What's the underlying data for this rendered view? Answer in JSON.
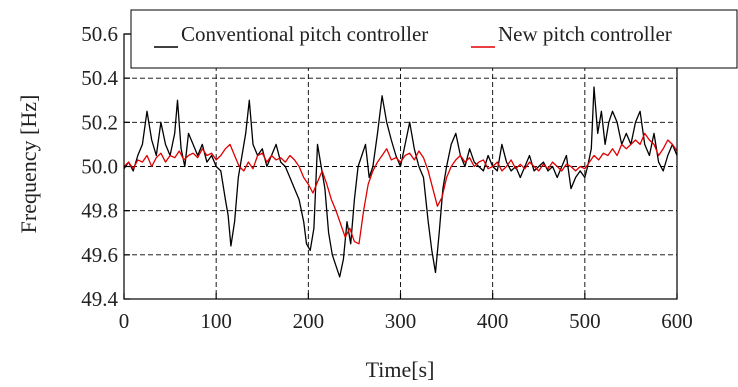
{
  "chart_data": {
    "type": "line",
    "xlabel": "Time[s]",
    "ylabel": "Frequency [Hz]",
    "xlim": [
      0,
      600
    ],
    "ylim": [
      49.4,
      50.6
    ],
    "xticks": [
      "0",
      "100",
      "200",
      "300",
      "400",
      "500",
      "600"
    ],
    "yticks": [
      "49.4",
      "49.6",
      "49.8",
      "50.0",
      "50.2",
      "50.4",
      "50.6"
    ],
    "grid": "dashed",
    "legend_position": "top",
    "series": [
      {
        "name": "Conventional pitch controller",
        "color": "#000000",
        "x": [
          0,
          5,
          10,
          15,
          20,
          25,
          30,
          35,
          40,
          45,
          50,
          55,
          58,
          62,
          66,
          70,
          75,
          80,
          85,
          90,
          95,
          100,
          105,
          110,
          113,
          116,
          120,
          124,
          128,
          132,
          136,
          140,
          145,
          150,
          155,
          160,
          165,
          170,
          175,
          180,
          185,
          190,
          195,
          198,
          202,
          206,
          210,
          214,
          218,
          222,
          226,
          230,
          234,
          238,
          242,
          246,
          250,
          254,
          258,
          262,
          266,
          270,
          275,
          280,
          285,
          290,
          295,
          300,
          305,
          310,
          315,
          320,
          325,
          330,
          334,
          338,
          342,
          346,
          350,
          355,
          360,
          365,
          370,
          375,
          380,
          385,
          390,
          395,
          400,
          405,
          410,
          415,
          420,
          425,
          430,
          435,
          440,
          445,
          450,
          455,
          460,
          465,
          470,
          475,
          480,
          485,
          490,
          495,
          500,
          503,
          507,
          510,
          514,
          518,
          522,
          526,
          530,
          535,
          540,
          545,
          550,
          555,
          560,
          565,
          570,
          575,
          580,
          585,
          590,
          595,
          600
        ],
        "y": [
          49.99,
          50.02,
          49.98,
          50.05,
          50.1,
          50.25,
          50.12,
          50.05,
          50.2,
          50.1,
          50.05,
          50.15,
          50.3,
          50.08,
          50.0,
          50.15,
          50.1,
          50.05,
          50.1,
          50.02,
          50.05,
          50.0,
          49.98,
          49.85,
          49.78,
          49.64,
          49.75,
          49.95,
          50.05,
          50.15,
          50.3,
          50.1,
          50.05,
          50.08,
          50.0,
          50.05,
          50.1,
          50.02,
          50.0,
          49.95,
          49.9,
          49.85,
          49.75,
          49.65,
          49.62,
          49.72,
          50.1,
          50.0,
          49.9,
          49.7,
          49.6,
          49.55,
          49.5,
          49.58,
          49.75,
          49.65,
          49.85,
          50.0,
          50.05,
          50.1,
          49.95,
          50.0,
          50.15,
          50.32,
          50.2,
          50.12,
          50.05,
          50.0,
          50.1,
          50.2,
          50.08,
          50.0,
          49.95,
          49.75,
          49.62,
          49.52,
          49.7,
          49.9,
          50.0,
          50.1,
          50.15,
          50.05,
          50.0,
          50.08,
          50.02,
          50.0,
          49.98,
          50.05,
          50.0,
          49.98,
          50.1,
          50.02,
          49.98,
          50.0,
          49.95,
          50.0,
          50.05,
          49.98,
          50.0,
          50.02,
          49.98,
          50.0,
          49.95,
          50.0,
          50.05,
          49.9,
          49.95,
          49.98,
          49.95,
          50.0,
          50.08,
          50.36,
          50.15,
          50.25,
          50.1,
          50.2,
          50.25,
          50.2,
          50.1,
          50.15,
          50.1,
          50.2,
          50.25,
          50.1,
          50.05,
          50.15,
          50.02,
          49.98,
          50.05,
          50.1,
          50.05
        ]
      },
      {
        "name": "New pitch controller",
        "color": "#e00000",
        "x": [
          0,
          5,
          10,
          15,
          20,
          25,
          30,
          35,
          40,
          45,
          50,
          55,
          60,
          65,
          70,
          75,
          80,
          85,
          90,
          95,
          100,
          105,
          110,
          115,
          120,
          125,
          130,
          135,
          140,
          145,
          150,
          155,
          160,
          165,
          170,
          175,
          180,
          185,
          190,
          195,
          200,
          205,
          210,
          215,
          220,
          225,
          230,
          235,
          240,
          245,
          250,
          255,
          260,
          265,
          270,
          275,
          280,
          285,
          290,
          295,
          300,
          305,
          310,
          315,
          320,
          325,
          330,
          335,
          340,
          345,
          350,
          355,
          360,
          365,
          370,
          375,
          380,
          385,
          390,
          395,
          400,
          405,
          410,
          415,
          420,
          425,
          430,
          435,
          440,
          445,
          450,
          455,
          460,
          465,
          470,
          475,
          480,
          485,
          490,
          495,
          500,
          505,
          510,
          515,
          520,
          525,
          530,
          535,
          540,
          545,
          550,
          555,
          560,
          565,
          570,
          575,
          580,
          585,
          590,
          595,
          600
        ],
        "y": [
          50.0,
          50.02,
          49.99,
          50.03,
          50.02,
          50.05,
          50.0,
          50.04,
          50.06,
          50.02,
          50.05,
          50.04,
          50.07,
          50.03,
          50.05,
          50.06,
          50.04,
          50.08,
          50.05,
          50.06,
          50.03,
          50.05,
          50.08,
          50.1,
          50.05,
          50.0,
          49.98,
          50.02,
          49.99,
          50.05,
          50.06,
          50.02,
          50.05,
          50.03,
          50.04,
          50.02,
          50.05,
          50.03,
          50.0,
          49.95,
          49.92,
          49.88,
          49.93,
          49.98,
          49.92,
          49.85,
          49.8,
          49.74,
          49.68,
          49.72,
          49.66,
          49.65,
          49.8,
          49.92,
          49.98,
          50.02,
          50.05,
          50.08,
          50.03,
          50.04,
          50.02,
          50.05,
          50.06,
          50.03,
          50.07,
          50.04,
          49.98,
          49.9,
          49.82,
          49.86,
          49.95,
          50.0,
          50.03,
          50.05,
          50.02,
          50.04,
          50.0,
          50.02,
          50.03,
          49.99,
          50.0,
          50.02,
          49.98,
          50.0,
          50.03,
          49.99,
          50.01,
          49.99,
          50.02,
          50.0,
          49.98,
          50.01,
          49.99,
          50.02,
          50.0,
          49.98,
          50.01,
          50.0,
          49.98,
          50.0,
          49.99,
          50.02,
          50.05,
          50.03,
          50.06,
          50.05,
          50.08,
          50.05,
          50.1,
          50.08,
          50.1,
          50.12,
          50.1,
          50.15,
          50.12,
          50.1,
          50.05,
          50.08,
          50.12,
          50.1,
          50.07
        ]
      }
    ]
  }
}
